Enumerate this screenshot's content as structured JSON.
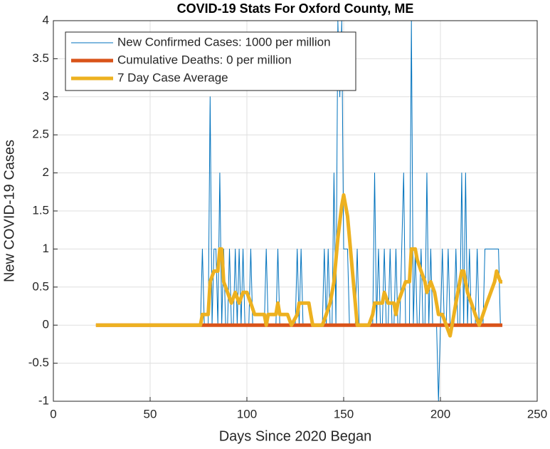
{
  "chart_data": {
    "type": "line",
    "title": "COVID-19 Stats For Oxford County, ME",
    "x_label": "Days Since 2020 Began",
    "y_label": "New COVID-19 Cases",
    "xlim": [
      0,
      250
    ],
    "xticks": [
      0,
      50,
      100,
      150,
      200,
      250
    ],
    "ylim": [
      -1,
      4
    ],
    "yticks": [
      -1,
      -0.5,
      0,
      0.5,
      1,
      1.5,
      2,
      2.5,
      3,
      3.5,
      4
    ],
    "grid": true,
    "legend": "upper left",
    "series": [
      {
        "name": "New Confirmed Cases: 1000 per million",
        "color": "#0072BD",
        "width": 1,
        "x": [
          76,
          77,
          78,
          79,
          80,
          81,
          82,
          83,
          84,
          85,
          86,
          87,
          88,
          89,
          90,
          91,
          92,
          93,
          94,
          95,
          96,
          97,
          98,
          99,
          100,
          101,
          102,
          103,
          104,
          105,
          106,
          107,
          108,
          109,
          110,
          111,
          112,
          113,
          114,
          115,
          116,
          117,
          118,
          119,
          120,
          121,
          122,
          123,
          124,
          125,
          126,
          127,
          128,
          129,
          130,
          131,
          132,
          133,
          134,
          135,
          136,
          137,
          138,
          139,
          140,
          141,
          142,
          143,
          144,
          145,
          146,
          147,
          148,
          149,
          150,
          151,
          152,
          153,
          154,
          155,
          156,
          157,
          158,
          159,
          160,
          161,
          162,
          163,
          164,
          165,
          166,
          167,
          168,
          169,
          170,
          171,
          172,
          173,
          174,
          175,
          176,
          177,
          178,
          179,
          180,
          181,
          182,
          183,
          184,
          185,
          186,
          187,
          188,
          189,
          190,
          191,
          192,
          193,
          194,
          195,
          196,
          197,
          198,
          199,
          200,
          201,
          202,
          203,
          204,
          205,
          206,
          207,
          208,
          209,
          210,
          211,
          212,
          213,
          214,
          215,
          216,
          217,
          218,
          219,
          220,
          221,
          222,
          223,
          224,
          225,
          226,
          227,
          228,
          229,
          230,
          231,
          232
        ],
        "values": [
          0,
          1,
          0,
          0,
          0,
          3,
          0,
          1,
          1,
          0,
          2,
          0,
          1,
          0,
          0,
          1,
          0,
          0,
          1,
          0,
          1,
          0,
          1,
          0,
          0,
          0,
          1,
          0,
          0,
          0,
          0,
          0,
          0,
          0,
          1,
          0,
          0,
          0,
          0,
          0,
          1,
          0,
          0,
          0,
          0,
          0,
          0,
          0,
          0,
          0,
          1,
          0,
          1,
          0,
          0,
          0,
          0,
          0,
          0,
          0,
          0,
          0,
          0,
          0,
          1,
          0,
          1,
          0,
          0,
          2,
          0,
          4,
          3,
          4,
          1,
          1,
          1,
          0,
          0,
          0,
          0,
          1,
          0,
          0,
          0,
          0,
          0,
          0,
          0,
          0,
          2,
          0,
          1,
          0,
          0,
          1,
          0,
          0,
          1,
          0,
          0,
          1,
          0,
          0,
          1,
          2,
          0,
          0,
          0,
          4,
          0,
          1,
          0,
          0,
          1,
          0,
          0,
          2,
          0,
          1,
          0,
          0,
          0,
          -1,
          0,
          1,
          0,
          0,
          1,
          0,
          0,
          0,
          1,
          0,
          0,
          2,
          0,
          2,
          0,
          1,
          0,
          0,
          0,
          1,
          0,
          0,
          0,
          1,
          1,
          1,
          1,
          1,
          1,
          1,
          1,
          0,
          0
        ]
      },
      {
        "name": "Cumulative Deaths: 0 per million",
        "color": "#D95319",
        "width": 5,
        "x": [
          22,
          232
        ],
        "values": [
          0,
          0
        ]
      },
      {
        "name": "7 Day Case Average",
        "color": "#EDB120",
        "width": 5,
        "x": [
          22,
          76,
          77,
          80,
          81,
          83,
          85,
          86,
          87,
          88,
          90,
          92,
          94,
          96,
          98,
          100,
          102,
          104,
          109,
          110,
          111,
          115,
          116,
          117,
          121,
          123,
          126,
          127,
          132,
          133,
          134,
          139,
          141,
          143,
          145,
          147,
          149,
          150,
          152,
          154,
          156,
          157,
          163,
          165,
          166,
          170,
          171,
          173,
          176,
          177,
          178,
          180,
          182,
          184,
          185,
          187,
          188,
          190,
          192,
          193,
          195,
          197,
          199,
          201,
          203,
          205,
          206,
          208,
          210,
          211,
          212,
          214,
          216,
          218,
          220,
          222,
          224,
          226,
          228,
          229,
          231,
          232
        ],
        "values": [
          0,
          0,
          0.14,
          0.14,
          0.57,
          0.71,
          0.71,
          1.0,
          1.0,
          0.57,
          0.43,
          0.29,
          0.43,
          0.29,
          0.43,
          0.43,
          0.29,
          0.14,
          0.14,
          0,
          0.14,
          0.14,
          0.29,
          0.14,
          0.14,
          0,
          0.14,
          0.29,
          0.29,
          0.14,
          0,
          0,
          0.14,
          0.29,
          0.57,
          1.14,
          1.57,
          1.71,
          1.43,
          0.86,
          0.29,
          0,
          0,
          0.14,
          0.29,
          0.29,
          0.43,
          0.29,
          0.29,
          0.14,
          0.29,
          0.43,
          0.57,
          0.57,
          1.0,
          1.0,
          0.86,
          0.71,
          0.57,
          0.43,
          0.57,
          0.43,
          0.14,
          0.14,
          0,
          -0.14,
          0,
          0.29,
          0.57,
          0.71,
          0.71,
          0.43,
          0.29,
          0.14,
          0,
          0.14,
          0.29,
          0.43,
          0.57,
          0.71,
          0.57,
          0.57
        ]
      }
    ]
  }
}
